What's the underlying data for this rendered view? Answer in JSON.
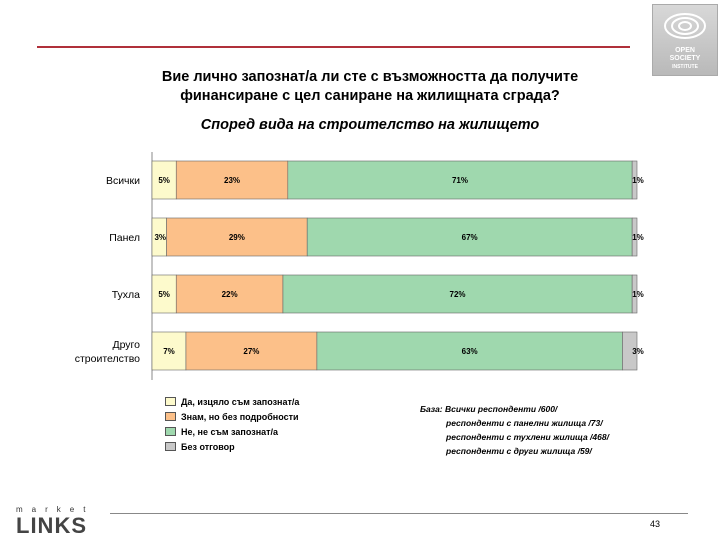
{
  "title_line1": "Вие лично запознат/а ли сте с възможността да получите",
  "title_line2": "финансиране с цел саниране на жилищната сграда?",
  "subtitle": "Според вида на строителство на жилището",
  "colors": {
    "fully_aware": "#fdfacc",
    "know_no_details": "#fcc089",
    "not_aware": "#9fd8ae",
    "no_answer": "#c8c8c8",
    "accent_rule": "#b0303a"
  },
  "chart_data": {
    "type": "bar",
    "orientation": "horizontal",
    "stacked": true,
    "categories": [
      "Всички",
      "Панел",
      "Тухла",
      "Друго строителство"
    ],
    "category_label_lines": [
      [
        "Всички"
      ],
      [
        "Панел"
      ],
      [
        "Тухла"
      ],
      [
        "Друго",
        "строителство"
      ]
    ],
    "series": [
      {
        "name": "Да, изцяло съм запознат/а",
        "values": [
          5,
          3,
          5,
          7
        ]
      },
      {
        "name": "Знам, но без подробности",
        "values": [
          23,
          29,
          22,
          27
        ]
      },
      {
        "name": "Не, не съм запознат/а",
        "values": [
          71,
          67,
          72,
          63
        ]
      },
      {
        "name": "Без отговор",
        "values": [
          1,
          1,
          1,
          3
        ]
      }
    ],
    "value_suffix": "%",
    "xlim": [
      0,
      100
    ],
    "legend_position": "bottom-left",
    "grid": false
  },
  "base_note": {
    "line1": "База: Всички респонденти /600/",
    "line2": "респонденти с панелни жилища /73/",
    "line3": "респонденти с тухлени жилища /468/",
    "line4": "респонденти с други жилища /59/"
  },
  "logo": {
    "line1": "OPEN",
    "line2": "SOCIETY",
    "line3": "INSTITUTE"
  },
  "brand": {
    "small": "market",
    "big": "LINKS"
  },
  "page_number": "43"
}
